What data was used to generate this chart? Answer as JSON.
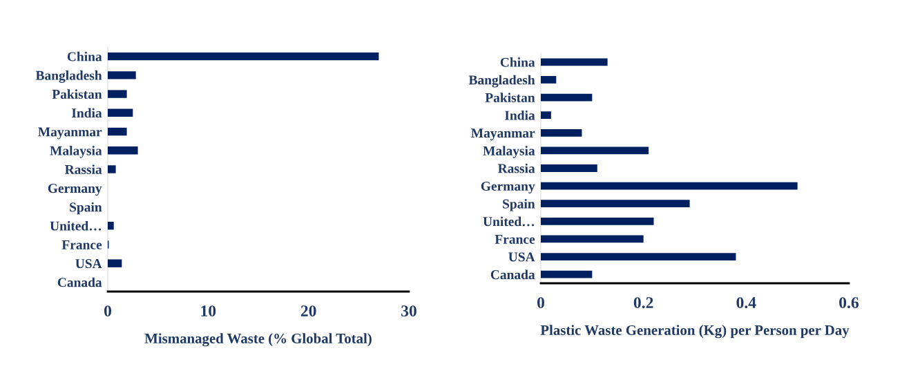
{
  "chart_data": [
    {
      "type": "bar",
      "orientation": "horizontal",
      "xlabel": "Mismanaged Waste (% Global Total)",
      "categories": [
        "China",
        "Bangladesh",
        "Pakistan",
        "India",
        "Mayanmar",
        "Malaysia",
        "Rassia",
        "Germany",
        "Spain",
        "United…",
        "France",
        "USA",
        "Canada"
      ],
      "values": [
        27.0,
        2.8,
        1.9,
        2.5,
        1.9,
        3.0,
        0.8,
        0,
        0,
        0.6,
        0.1,
        1.4,
        0
      ],
      "color": "#002060",
      "xlim": [
        0,
        30
      ],
      "xticks": [
        0,
        10,
        20,
        30
      ],
      "grid": false,
      "legend": false
    },
    {
      "type": "bar",
      "orientation": "horizontal",
      "xlabel": "Plastic Waste Generation (Kg) per Person per Day",
      "categories": [
        "China",
        "Bangladesh",
        "Pakistan",
        "India",
        "Mayanmar",
        "Malaysia",
        "Rassia",
        "Germany",
        "Spain",
        "United…",
        "France",
        "USA",
        "Canada"
      ],
      "values": [
        0.13,
        0.03,
        0.1,
        0.02,
        0.08,
        0.21,
        0.11,
        0.5,
        0.29,
        0.22,
        0.2,
        0.38,
        0.1
      ],
      "color": "#002060",
      "xlim": [
        0,
        0.6
      ],
      "xticks": [
        0,
        0.2,
        0.4,
        0.6
      ],
      "grid": false,
      "legend": false
    }
  ]
}
